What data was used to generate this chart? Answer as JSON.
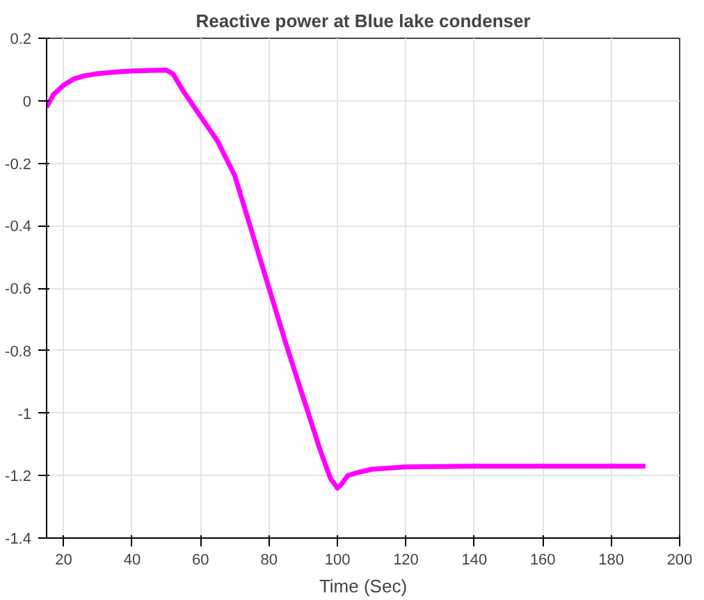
{
  "chart_data": {
    "type": "line",
    "title": "Reactive power at Blue lake condenser",
    "xlabel": "Time (Sec)",
    "x": [
      15,
      17,
      20,
      23,
      26,
      30,
      35,
      40,
      45,
      50,
      52,
      55,
      60,
      65,
      70,
      75,
      80,
      85,
      90,
      95,
      98,
      100,
      101,
      103,
      106,
      110,
      120,
      140,
      160,
      190
    ],
    "series": [
      {
        "color": "#ff00ff",
        "values": [
          -0.02,
          0.02,
          0.05,
          0.07,
          0.08,
          0.087,
          0.092,
          0.095,
          0.097,
          0.098,
          0.085,
          0.03,
          -0.05,
          -0.13,
          -0.24,
          -0.42,
          -0.6,
          -0.78,
          -0.95,
          -1.12,
          -1.21,
          -1.24,
          -1.23,
          -1.2,
          -1.19,
          -1.18,
          -1.172,
          -1.17,
          -1.17,
          -1.17
        ]
      }
    ],
    "xlim": [
      15,
      200
    ],
    "ylim": [
      -1.4,
      0.2
    ],
    "xticks": [
      20,
      40,
      60,
      80,
      100,
      120,
      140,
      160,
      180,
      200
    ],
    "yticks": [
      -1.4,
      -1.2,
      -1,
      -0.8,
      -0.6,
      -0.4,
      -0.2,
      0,
      0.2
    ],
    "grid": true,
    "line_style": "solid"
  }
}
